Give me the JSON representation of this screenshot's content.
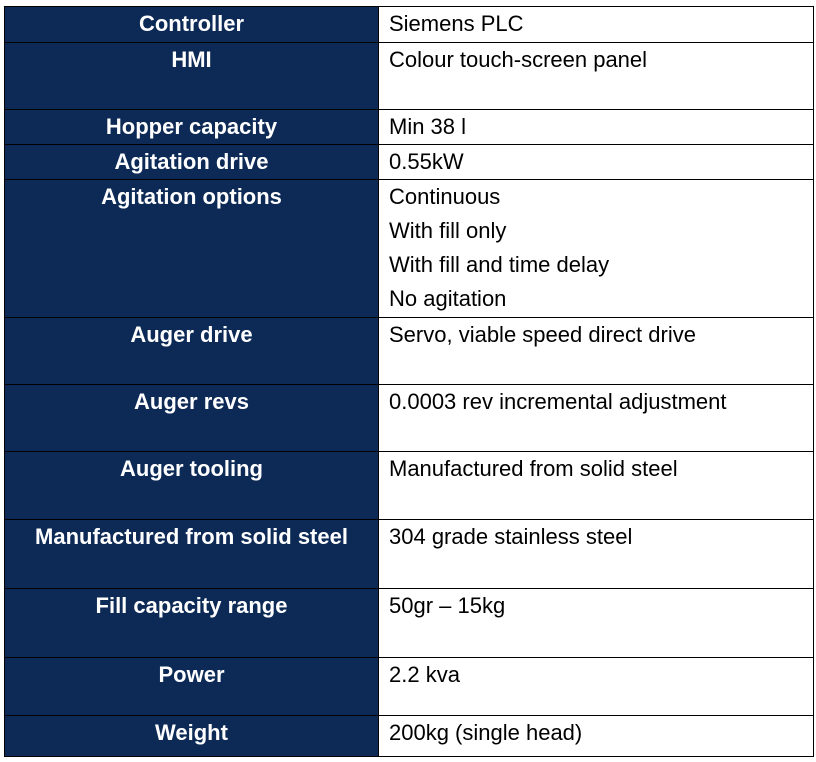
{
  "table": {
    "rows": [
      {
        "label": "Controller",
        "lines": [
          "Siemens PLC"
        ]
      },
      {
        "label": "HMI",
        "lines": [
          "Colour touch-screen panel"
        ]
      },
      {
        "label": "Hopper capacity",
        "lines": [
          "Min 38 l"
        ]
      },
      {
        "label": "Agitation drive",
        "lines": [
          "0.55kW"
        ]
      },
      {
        "label": "Agitation options",
        "lines": [
          "Continuous",
          "With fill only",
          "With fill and time delay",
          "No agitation"
        ]
      },
      {
        "label": "Auger drive",
        "lines": [
          "Servo, viable speed direct drive"
        ]
      },
      {
        "label": "Auger revs",
        "lines": [
          "0.0003 rev incremental adjustment"
        ]
      },
      {
        "label": "Auger tooling",
        "lines": [
          "Manufactured from solid steel"
        ]
      },
      {
        "label": "Manufactured from solid steel",
        "lines": [
          "304 grade stainless steel"
        ]
      },
      {
        "label": "Fill capacity range",
        "lines": [
          "50gr – 15kg"
        ]
      },
      {
        "label": "Power",
        "lines": [
          "2.2 kva"
        ]
      },
      {
        "label": "Weight",
        "lines": [
          "200kg (single head)"
        ]
      }
    ]
  }
}
